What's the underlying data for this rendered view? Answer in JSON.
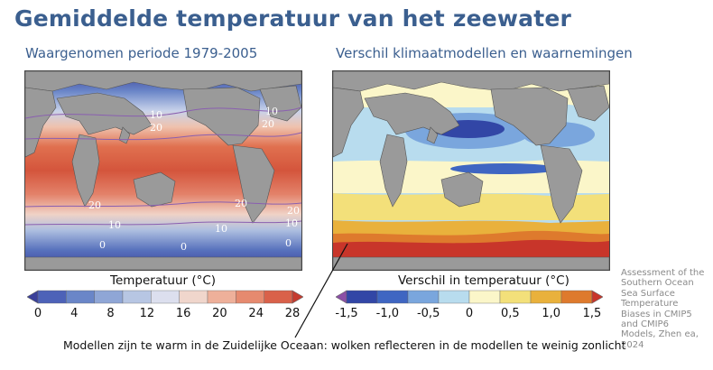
{
  "header": {
    "title": "Gemiddelde temperatuur van het zeewater"
  },
  "panels": [
    {
      "subtitle": "Waargenomen periode 1979-2005",
      "legend_title": "Temperatuur (°C)"
    },
    {
      "subtitle": "Verschil klimaatmodellen en waarnemingen",
      "legend_title": "Verschil in temperatuur (°C)"
    }
  ],
  "contour_labels": [
    "10",
    "20",
    "0"
  ],
  "annotation": "Modellen zijn te warm in de Zuidelijke Oceaan: wolken reflecteren in de modellen te weinig zonlicht",
  "source_lines": [
    "Assessment of the",
    "Southern Ocean",
    "Sea Surface",
    "Temperature",
    "Biases in CMIP5",
    "and CMIP6",
    "Models, Zhen ea,",
    "2024"
  ],
  "chart_data": [
    {
      "type": "heatmap",
      "title": "Waargenomen periode 1979-2005",
      "colorbar_label": "Temperatuur (°C)",
      "colorbar_ticks": [
        "0",
        "4",
        "8",
        "12",
        "16",
        "20",
        "24",
        "28"
      ],
      "range": [
        0,
        28
      ],
      "colors": [
        "#3a3f9a",
        "#4d62b8",
        "#6a86c8",
        "#8fa6d6",
        "#b7c6e3",
        "#dcdfee",
        "#f0d6cc",
        "#eeb09a",
        "#e68a6f",
        "#d9614a",
        "#c53b2f"
      ]
    },
    {
      "type": "heatmap",
      "title": "Verschil klimaatmodellen en waarnemingen",
      "colorbar_label": "Verschil in temperatuur (°C)",
      "colorbar_ticks": [
        "-1,5",
        "-1,0",
        "-0,5",
        "0",
        "0,5",
        "1,0",
        "1,5"
      ],
      "range": [
        -1.5,
        1.5
      ],
      "colors": [
        "#8b4fa6",
        "#3246a6",
        "#3f66c2",
        "#7aa6dd",
        "#b8dcee",
        "#fbf6c9",
        "#f3e07a",
        "#e9b13c",
        "#de7a2d",
        "#c8352a"
      ]
    }
  ]
}
